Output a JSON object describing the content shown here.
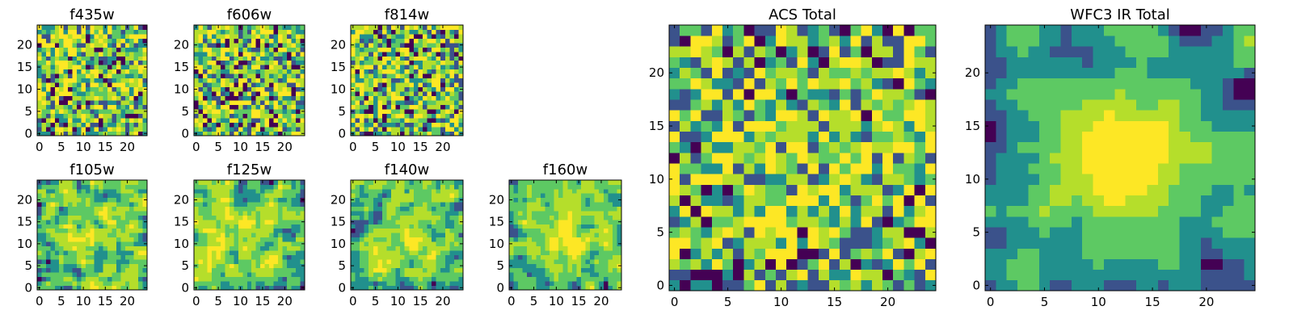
{
  "palette": [
    "#440154",
    "#3b528b",
    "#21908d",
    "#5dc963",
    "#b5de2b",
    "#fde725"
  ],
  "chart_data": [
    {
      "type": "heatmap",
      "title": "f435w",
      "grid": [
        25,
        25
      ],
      "xlim": [
        -0.5,
        24.5
      ],
      "ylim": [
        -0.5,
        24.5
      ],
      "xticks": [
        0,
        5,
        10,
        15,
        20
      ],
      "yticks": [
        0,
        5,
        10,
        15,
        20
      ],
      "seed": 11,
      "smooth": 0,
      "bias": 0,
      "bias_sigma": 4
    },
    {
      "type": "heatmap",
      "title": "f606w",
      "grid": [
        25,
        25
      ],
      "xlim": [
        -0.5,
        24.5
      ],
      "ylim": [
        -0.5,
        24.5
      ],
      "xticks": [
        0,
        5,
        10,
        15,
        20
      ],
      "yticks": [
        0,
        5,
        10,
        15,
        20
      ],
      "seed": 23,
      "smooth": 0,
      "bias": 0,
      "bias_sigma": 4
    },
    {
      "type": "heatmap",
      "title": "f814w",
      "grid": [
        25,
        25
      ],
      "xlim": [
        -0.5,
        24.5
      ],
      "ylim": [
        -0.5,
        24.5
      ],
      "xticks": [
        0,
        5,
        10,
        15,
        20
      ],
      "yticks": [
        0,
        5,
        10,
        15,
        20
      ],
      "seed": 37,
      "smooth": 0,
      "bias": 0,
      "bias_sigma": 4
    },
    {
      "type": "heatmap",
      "title": "f105w",
      "grid": [
        25,
        25
      ],
      "xlim": [
        -0.5,
        24.5
      ],
      "ylim": [
        -0.5,
        24.5
      ],
      "xticks": [
        0,
        5,
        10,
        15,
        20
      ],
      "yticks": [
        0,
        5,
        10,
        15,
        20
      ],
      "seed": 41,
      "smooth": 1,
      "bias": 0.15,
      "bias_sigma": 5
    },
    {
      "type": "heatmap",
      "title": "f125w",
      "grid": [
        25,
        25
      ],
      "xlim": [
        -0.5,
        24.5
      ],
      "ylim": [
        -0.5,
        24.5
      ],
      "xticks": [
        0,
        5,
        10,
        15,
        20
      ],
      "yticks": [
        0,
        5,
        10,
        15,
        20
      ],
      "seed": 53,
      "smooth": 1,
      "bias": 0.05,
      "bias_sigma": 5
    },
    {
      "type": "heatmap",
      "title": "f140w",
      "grid": [
        25,
        25
      ],
      "xlim": [
        -0.5,
        24.5
      ],
      "ylim": [
        -0.5,
        24.5
      ],
      "xticks": [
        0,
        5,
        10,
        15,
        20
      ],
      "yticks": [
        0,
        5,
        10,
        15,
        20
      ],
      "seed": 67,
      "smooth": 1,
      "bias": 0.15,
      "bias_sigma": 5
    },
    {
      "type": "heatmap",
      "title": "f160w",
      "grid": [
        25,
        25
      ],
      "xlim": [
        -0.5,
        24.5
      ],
      "ylim": [
        -0.5,
        24.5
      ],
      "xticks": [
        0,
        5,
        10,
        15,
        20
      ],
      "yticks": [
        0,
        5,
        10,
        15,
        20
      ],
      "seed": 79,
      "smooth": 1,
      "bias": 0.3,
      "bias_sigma": 5
    },
    {
      "type": "heatmap",
      "title": "ACS Total",
      "grid": [
        25,
        25
      ],
      "xlim": [
        -0.5,
        24.5
      ],
      "ylim": [
        -0.5,
        24.5
      ],
      "xticks": [
        0,
        5,
        10,
        15,
        20
      ],
      "yticks": [
        0,
        5,
        10,
        15,
        20
      ],
      "seed": 97,
      "smooth": 0,
      "bias": 0.1,
      "bias_sigma": 6
    },
    {
      "type": "heatmap",
      "title": "WFC3 IR Total",
      "grid": [
        25,
        25
      ],
      "xlim": [
        -0.5,
        24.5
      ],
      "ylim": [
        -0.5,
        24.5
      ],
      "xticks": [
        0,
        5,
        10,
        15,
        20
      ],
      "yticks": [
        0,
        5,
        10,
        15,
        20
      ],
      "seed": 113,
      "smooth": 2,
      "bias": 0.45,
      "bias_sigma": 5
    }
  ]
}
